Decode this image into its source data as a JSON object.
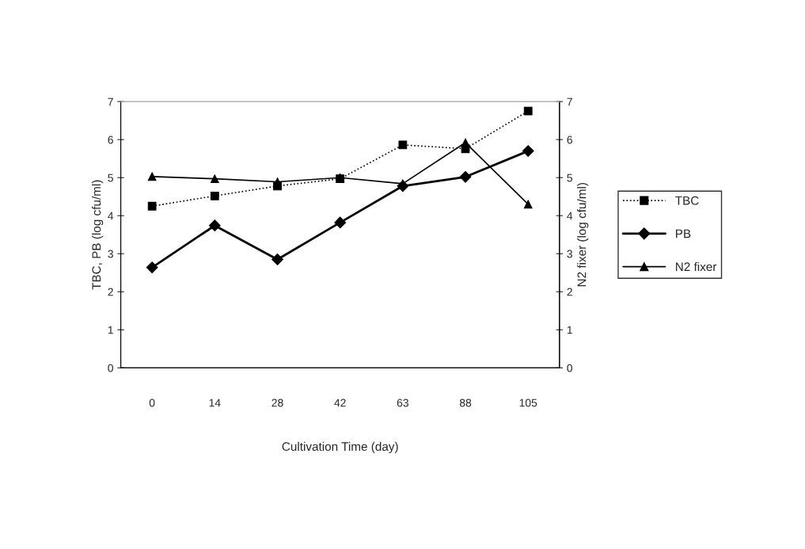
{
  "chart_data": {
    "type": "line",
    "xlabel": "Cultivation Time (day)",
    "ylabel": "TBC, PB (log cfu/ml)",
    "y2label": "N2 fixer (log cfu/ml)",
    "categories": [
      "0",
      "14",
      "28",
      "42",
      "63",
      "88",
      "105"
    ],
    "series": [
      {
        "name": "TBC",
        "color": "#000000",
        "marker": "square",
        "line_style": "dotted",
        "values": [
          4.25,
          4.52,
          4.78,
          4.97,
          5.86,
          5.76,
          6.75
        ]
      },
      {
        "name": "PB",
        "color": "#000000",
        "marker": "diamond",
        "line_style": "solid",
        "values": [
          2.64,
          3.74,
          2.85,
          3.82,
          4.78,
          5.02,
          5.7
        ]
      },
      {
        "name": "N2 fixer",
        "color": "#000000",
        "marker": "triangle",
        "line_style": "solid",
        "axis": "y2",
        "values": [
          5.03,
          4.97,
          4.89,
          5.0,
          4.84,
          5.92,
          4.3
        ]
      }
    ],
    "ylim": [
      0,
      7
    ],
    "yticks": [
      0,
      1,
      2,
      3,
      4,
      5,
      6,
      7
    ],
    "y2lim": [
      0,
      7
    ],
    "y2ticks": [
      0,
      1,
      2,
      3,
      4,
      5,
      6,
      7
    ],
    "grid": false,
    "legend": "right"
  }
}
